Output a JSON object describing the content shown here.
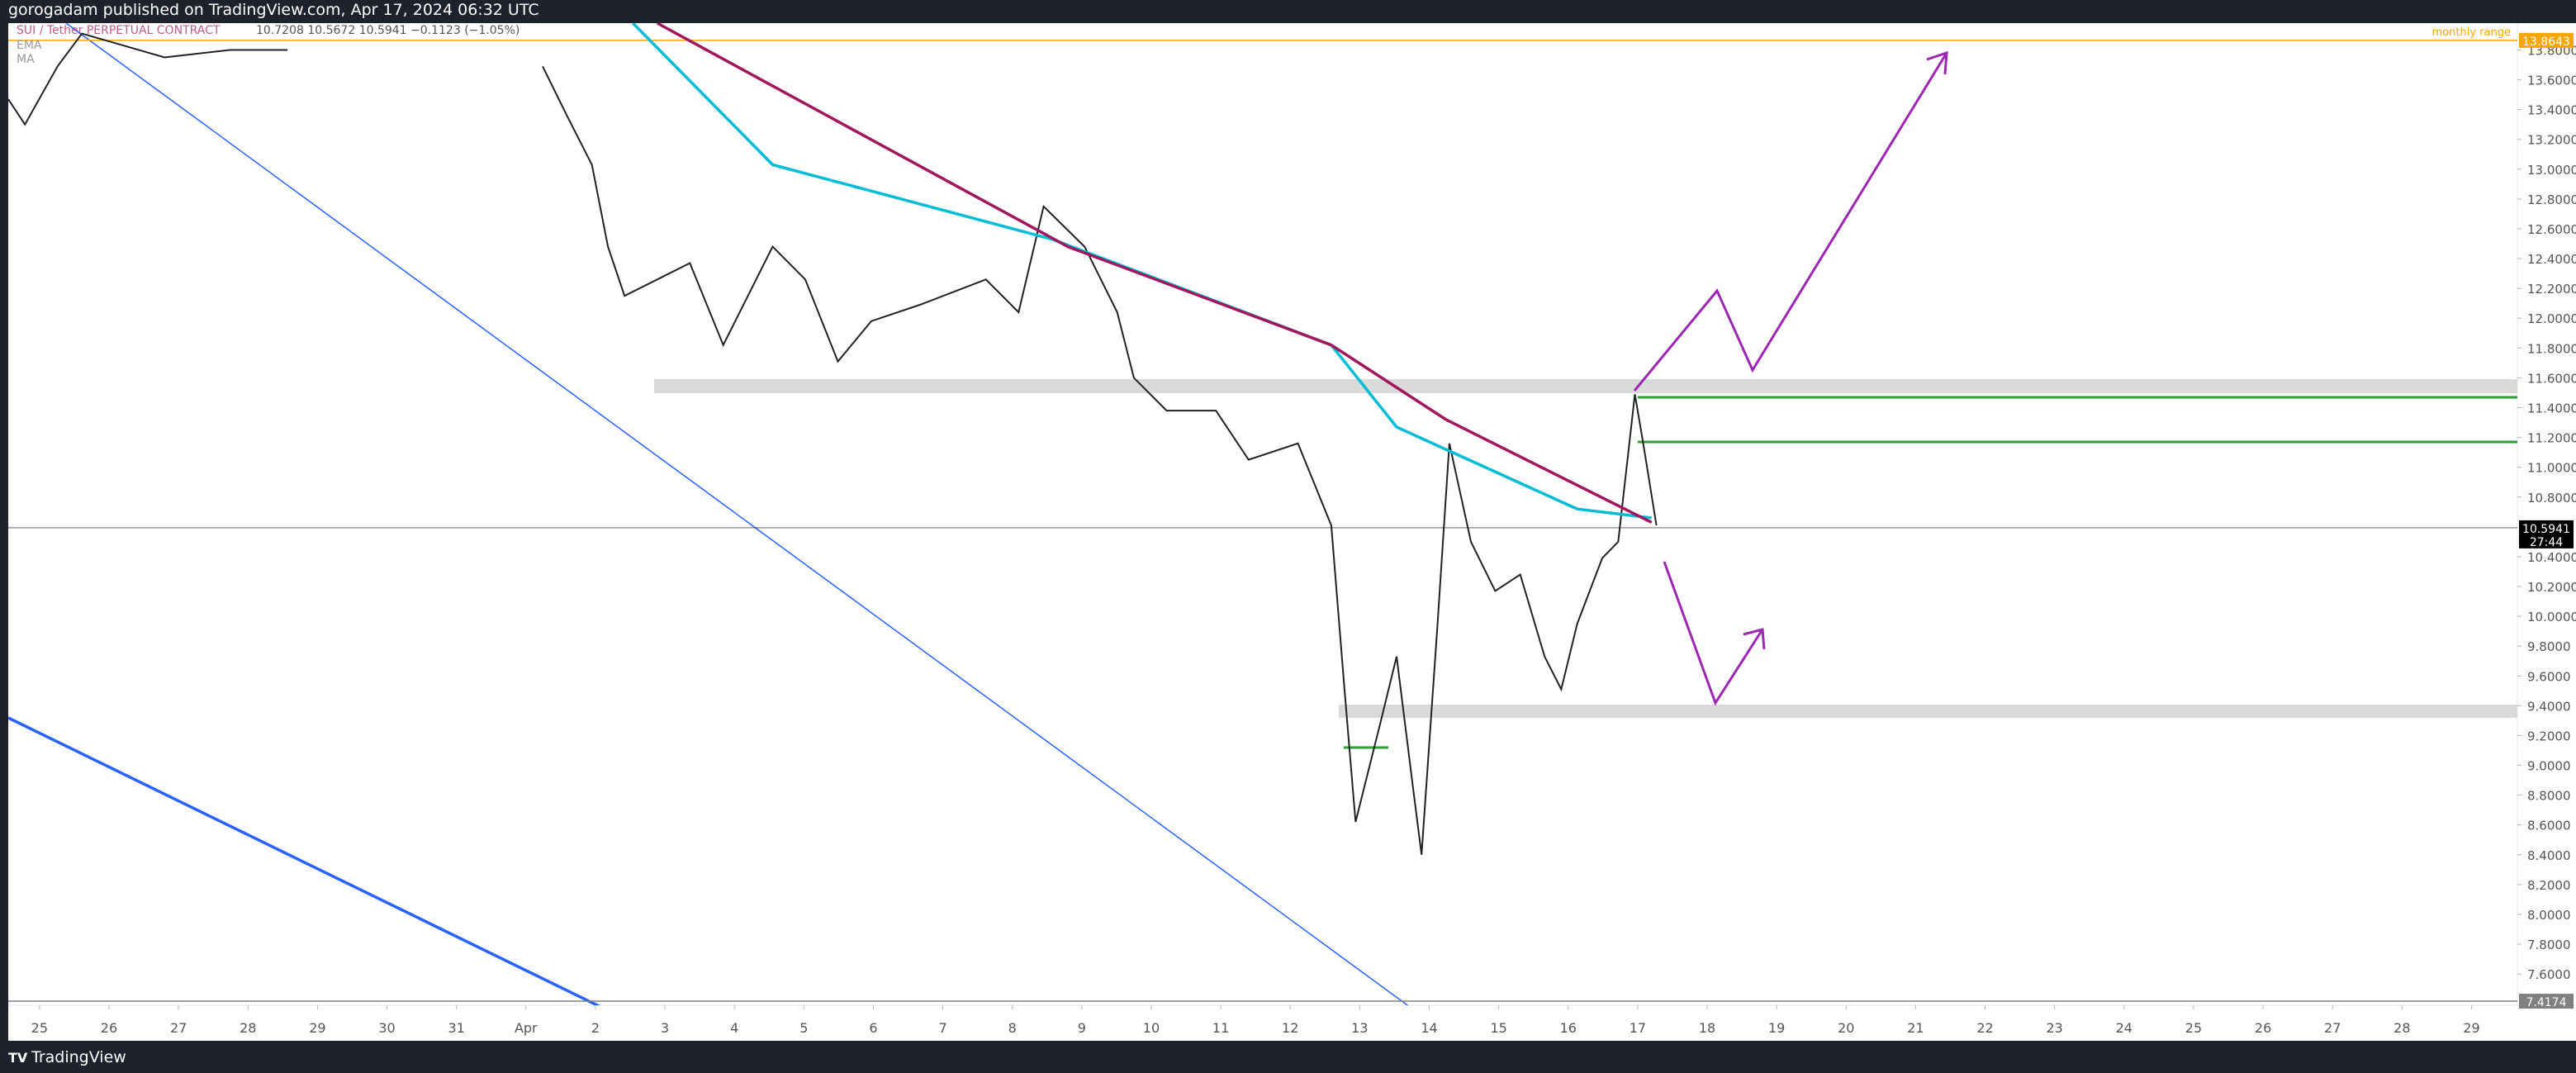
{
  "header": {
    "publisher": "gorogadam published on TradingView.com, Apr 17, 2024 06:32 UTC",
    "symbol": "SUI / Tether PERPETUAL CONTRACT",
    "ohlc": "10.7208  10.5672  10.5941  −0.1123 (−1.05%)",
    "indicators": [
      "EMA",
      "MA"
    ]
  },
  "footer": {
    "brand": "TradingView"
  },
  "chart_data": {
    "type": "line",
    "series": [
      {
        "name": "Price",
        "color": "#222222",
        "x": [
          -0.45,
          -0.21,
          0.26,
          0.61,
          1.8,
          2.74,
          3.57,
          5.34,
          7.24,
          7.59,
          7.95,
          8.18,
          8.42,
          8.89,
          9.36,
          9.84,
          10.55,
          11.02,
          11.49,
          11.97,
          12.67,
          13.62,
          14.09,
          14.45,
          15.04,
          15.51,
          15.75,
          16.22,
          16.93,
          17.4,
          18.11,
          18.59,
          18.78,
          18.94,
          19.3,
          19.53,
          19.77,
          19.89,
          20.12,
          20.29,
          20.6,
          20.95,
          21.31,
          21.66,
          21.9,
          22.13,
          22.49,
          22.72,
          22.96,
          23.08,
          23.27
        ],
        "values": [
          13.47,
          13.3,
          13.69,
          13.91,
          13.75,
          13.8,
          13.8,
          null,
          13.69,
          13.36,
          13.03,
          12.48,
          12.15,
          12.26,
          12.37,
          11.82,
          12.48,
          12.26,
          11.71,
          11.98,
          12.09,
          12.26,
          12.04,
          12.75,
          12.48,
          12.04,
          11.6,
          11.38,
          11.38,
          11.05,
          11.16,
          10.61,
          9.51,
          8.62,
          9.29,
          9.73,
          8.84,
          8.4,
          9.95,
          11.16,
          10.5,
          10.17,
          10.28,
          9.73,
          9.51,
          9.95,
          10.39,
          10.5,
          11.49,
          11.16,
          10.61
        ]
      },
      {
        "name": "EMA",
        "color": "#00bcd4",
        "x": [
          8.54,
          10.55,
          14.57,
          18.59,
          19.53,
          22.13,
          23.2
        ],
        "values": [
          13.98,
          13.03,
          12.53,
          11.82,
          11.27,
          10.72,
          10.66
        ]
      },
      {
        "name": "MA",
        "color": "#a0175c",
        "x": [
          8.89,
          14.8,
          18.59,
          20.24,
          23.2
        ],
        "values": [
          13.98,
          12.48,
          11.82,
          11.32,
          10.63
        ]
      }
    ],
    "xlim": [
      -0.45,
      35.66
    ],
    "xticks": [
      {
        "value": 0,
        "label": "25"
      },
      {
        "value": 1,
        "label": "26"
      },
      {
        "value": 2,
        "label": "27"
      },
      {
        "value": 3,
        "label": "28"
      },
      {
        "value": 4,
        "label": "29"
      },
      {
        "value": 5,
        "label": "30"
      },
      {
        "value": 6,
        "label": "31"
      },
      {
        "value": 7,
        "label": "Apr"
      },
      {
        "value": 8,
        "label": "2"
      },
      {
        "value": 9,
        "label": "3"
      },
      {
        "value": 10,
        "label": "4"
      },
      {
        "value": 11,
        "label": "5"
      },
      {
        "value": 12,
        "label": "6"
      },
      {
        "value": 13,
        "label": "7"
      },
      {
        "value": 14,
        "label": "8"
      },
      {
        "value": 15,
        "label": "9"
      },
      {
        "value": 16,
        "label": "10"
      },
      {
        "value": 17,
        "label": "11"
      },
      {
        "value": 18,
        "label": "12"
      },
      {
        "value": 19,
        "label": "13"
      },
      {
        "value": 20,
        "label": "14"
      },
      {
        "value": 21,
        "label": "15"
      },
      {
        "value": 22,
        "label": "16"
      },
      {
        "value": 23,
        "label": "17"
      },
      {
        "value": 24,
        "label": "18"
      },
      {
        "value": 25,
        "label": "19"
      },
      {
        "value": 26,
        "label": "20"
      },
      {
        "value": 27,
        "label": "21"
      },
      {
        "value": 28,
        "label": "22"
      },
      {
        "value": 29,
        "label": "23"
      },
      {
        "value": 30,
        "label": "24"
      },
      {
        "value": 31,
        "label": "25"
      },
      {
        "value": 32,
        "label": "26"
      },
      {
        "value": 33,
        "label": "27"
      },
      {
        "value": 34,
        "label": "28"
      },
      {
        "value": 35,
        "label": "29"
      }
    ],
    "ylim": [
      7.39,
      13.98
    ],
    "yticks": [
      {
        "value": 13.8,
        "label": "13.8000"
      },
      {
        "value": 13.6,
        "label": "13.6000"
      },
      {
        "value": 13.4,
        "label": "13.4000"
      },
      {
        "value": 13.2,
        "label": "13.2000"
      },
      {
        "value": 13.0,
        "label": "13.0000"
      },
      {
        "value": 12.8,
        "label": "12.8000"
      },
      {
        "value": 12.6,
        "label": "12.6000"
      },
      {
        "value": 12.4,
        "label": "12.4000"
      },
      {
        "value": 12.2,
        "label": "12.2000"
      },
      {
        "value": 12.0,
        "label": "12.0000"
      },
      {
        "value": 11.8,
        "label": "11.8000"
      },
      {
        "value": 11.6,
        "label": "11.6000"
      },
      {
        "value": 11.4,
        "label": "11.4000"
      },
      {
        "value": 11.2,
        "label": "11.2000"
      },
      {
        "value": 11.0,
        "label": "11.0000"
      },
      {
        "value": 10.8,
        "label": "10.8000"
      },
      {
        "value": 10.4,
        "label": "10.4000"
      },
      {
        "value": 10.2,
        "label": "10.2000"
      },
      {
        "value": 10.0,
        "label": "10.0000"
      },
      {
        "value": 9.8,
        "label": "9.8000"
      },
      {
        "value": 9.6,
        "label": "9.6000"
      },
      {
        "value": 9.4,
        "label": "9.4000"
      },
      {
        "value": 9.2,
        "label": "9.2000"
      },
      {
        "value": 9.0,
        "label": "9.0000"
      },
      {
        "value": 8.8,
        "label": "8.8000"
      },
      {
        "value": 8.6,
        "label": "8.6000"
      },
      {
        "value": 8.4,
        "label": "8.4000"
      },
      {
        "value": 8.2,
        "label": "8.2000"
      },
      {
        "value": 8.0,
        "label": "8.0000"
      },
      {
        "value": 7.8,
        "label": "7.8000"
      },
      {
        "value": 7.6,
        "label": "7.6000"
      }
    ],
    "price_lines": [
      {
        "value": 13.8643,
        "label": "13.8643",
        "color": "#f7a600",
        "note": "monthly range"
      },
      {
        "value": 10.5941,
        "label": "10.5941",
        "color": "#000000",
        "countdown": "27:44"
      },
      {
        "value": 7.4174,
        "label": "7.4174",
        "color": "#808080"
      }
    ]
  }
}
